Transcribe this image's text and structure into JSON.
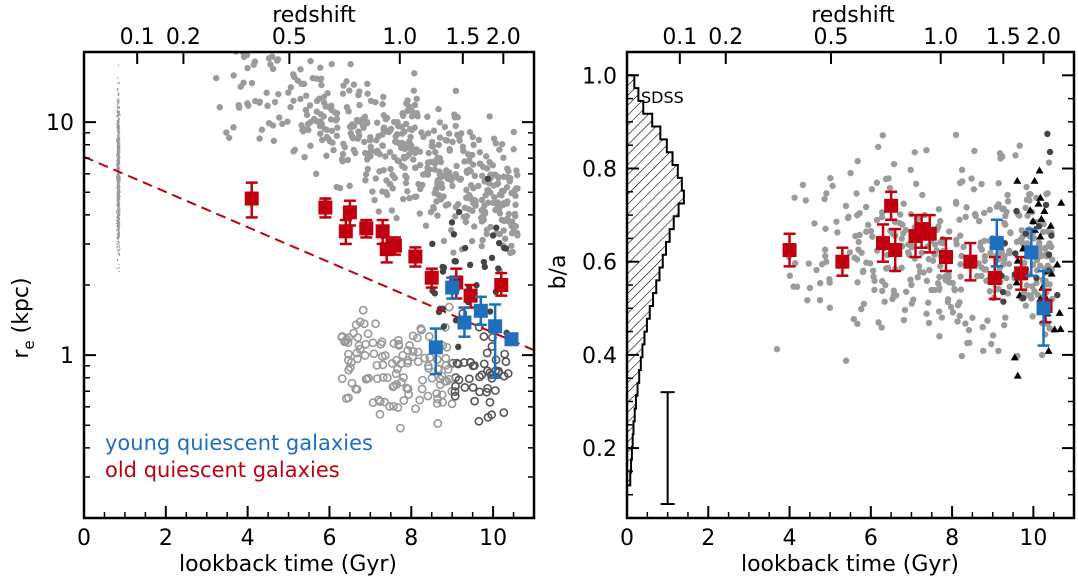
{
  "chart_data": [
    {
      "type": "scatter",
      "xlabel": "lookback time (Gyr)",
      "ylabel": "r_e (kpc)",
      "ylabel_main": "r",
      "ylabel_sub": "e",
      "ylabel_rest": " (kpc)",
      "top_axis_label": "redshift",
      "yscale": "log",
      "xlim": [
        0,
        11
      ],
      "ylim": [
        0.2,
        20
      ],
      "x_ticks": [
        0,
        2,
        4,
        6,
        8,
        10
      ],
      "x_tick_labels": [
        "0",
        "2",
        "4",
        "6",
        "8",
        "10"
      ],
      "y_ticks": [
        1,
        10
      ],
      "y_tick_labels": [
        "1",
        "10"
      ],
      "z_ticks": [
        {
          "z": 0.1,
          "t": 1.3,
          "label": "0.1"
        },
        {
          "z": 0.2,
          "t": 2.43,
          "label": "0.2"
        },
        {
          "z": 0.5,
          "t": 5.02,
          "label": "0.5"
        },
        {
          "z": 1.0,
          "t": 7.72,
          "label": "1.0"
        },
        {
          "z": 1.5,
          "t": 9.26,
          "label": "1.5"
        },
        {
          "z": 2.0,
          "t": 10.25,
          "label": "2.0"
        }
      ],
      "legend": [
        {
          "label": "young quiescent galaxies",
          "color": "#1f6fbf"
        },
        {
          "label": "old quiescent galaxies",
          "color": "#c0000f"
        }
      ],
      "trend_line": {
        "t0": 0,
        "r0": 7.1,
        "t1": 11,
        "r1": 1.05,
        "color": "#c0000f",
        "style": "dashed"
      },
      "series": [
        {
          "name": "old quiescent galaxies",
          "color": "#c0000f",
          "points": [
            {
              "x": 4.1,
              "y": 4.7,
              "lo": 3.9,
              "hi": 5.5
            },
            {
              "x": 5.9,
              "y": 4.3,
              "lo": 3.9,
              "hi": 4.7
            },
            {
              "x": 6.4,
              "y": 3.4,
              "lo": 3.0,
              "hi": 3.8
            },
            {
              "x": 6.5,
              "y": 4.1,
              "lo": 3.6,
              "hi": 4.6
            },
            {
              "x": 6.9,
              "y": 3.5,
              "lo": 3.2,
              "hi": 3.8
            },
            {
              "x": 7.3,
              "y": 3.4,
              "lo": 3.0,
              "hi": 3.8
            },
            {
              "x": 7.4,
              "y": 2.85,
              "lo": 2.5,
              "hi": 3.2
            },
            {
              "x": 7.6,
              "y": 2.95,
              "lo": 2.7,
              "hi": 3.2
            },
            {
              "x": 8.1,
              "y": 2.65,
              "lo": 2.4,
              "hi": 2.9
            },
            {
              "x": 8.5,
              "y": 2.15,
              "lo": 1.95,
              "hi": 2.35
            },
            {
              "x": 9.1,
              "y": 2.05,
              "lo": 1.75,
              "hi": 2.35
            },
            {
              "x": 9.45,
              "y": 1.8,
              "lo": 1.6,
              "hi": 2.0
            },
            {
              "x": 10.2,
              "y": 2.0,
              "lo": 1.8,
              "hi": 2.25
            }
          ]
        },
        {
          "name": "young quiescent galaxies",
          "color": "#1f6fbf",
          "points": [
            {
              "x": 8.6,
              "y": 1.08,
              "lo": 0.83,
              "hi": 1.3
            },
            {
              "x": 9.0,
              "y": 1.95,
              "lo": 1.75,
              "hi": 2.15
            },
            {
              "x": 9.3,
              "y": 1.38,
              "lo": 1.2,
              "hi": 1.6
            },
            {
              "x": 9.7,
              "y": 1.55,
              "lo": 1.35,
              "hi": 1.78
            },
            {
              "x": 10.05,
              "y": 1.33,
              "lo": 0.8,
              "hi": 1.65
            },
            {
              "x": 10.45,
              "y": 1.17
            }
          ]
        }
      ]
    },
    {
      "type": "scatter",
      "xlabel": "lookback time (Gyr)",
      "ylabel": "b/a",
      "top_axis_label": "redshift",
      "xlim": [
        0,
        11
      ],
      "ylim": [
        0.05,
        1.05
      ],
      "x_ticks": [
        0,
        2,
        4,
        6,
        8,
        10
      ],
      "x_tick_labels": [
        "0",
        "2",
        "4",
        "6",
        "8",
        "10"
      ],
      "y_ticks": [
        0.2,
        0.4,
        0.6,
        0.8,
        1.0
      ],
      "y_tick_labels": [
        "0.2",
        "0.4",
        "0.6",
        "0.8",
        "1.0"
      ],
      "z_ticks": [
        {
          "z": 0.1,
          "t": 1.3,
          "label": "0.1"
        },
        {
          "z": 0.2,
          "t": 2.43,
          "label": "0.2"
        },
        {
          "z": 0.5,
          "t": 5.02,
          "label": "0.5"
        },
        {
          "z": 1.0,
          "t": 7.72,
          "label": "1.0"
        },
        {
          "z": 1.5,
          "t": 9.26,
          "label": "1.5"
        },
        {
          "z": 2.0,
          "t": 10.25,
          "label": "2.0"
        }
      ],
      "histogram_label": "SDSS",
      "typical_error_bar": {
        "x": 1.0,
        "lo": 0.08,
        "hi": 0.32
      },
      "series": [
        {
          "name": "old quiescent galaxies",
          "color": "#c0000f",
          "points": [
            {
              "x": 4.0,
              "y": 0.625,
              "lo": 0.59,
              "hi": 0.66
            },
            {
              "x": 5.3,
              "y": 0.6,
              "lo": 0.57,
              "hi": 0.63
            },
            {
              "x": 6.3,
              "y": 0.64,
              "lo": 0.6,
              "hi": 0.68
            },
            {
              "x": 6.5,
              "y": 0.72,
              "lo": 0.69,
              "hi": 0.75
            },
            {
              "x": 6.6,
              "y": 0.625,
              "lo": 0.58,
              "hi": 0.67
            },
            {
              "x": 7.1,
              "y": 0.655,
              "lo": 0.61,
              "hi": 0.7
            },
            {
              "x": 7.25,
              "y": 0.67,
              "lo": 0.63,
              "hi": 0.7
            },
            {
              "x": 7.45,
              "y": 0.66,
              "lo": 0.62,
              "hi": 0.7
            },
            {
              "x": 7.85,
              "y": 0.61,
              "lo": 0.58,
              "hi": 0.65
            },
            {
              "x": 8.45,
              "y": 0.6,
              "lo": 0.56,
              "hi": 0.64
            },
            {
              "x": 9.05,
              "y": 0.565,
              "lo": 0.52,
              "hi": 0.61
            },
            {
              "x": 9.7,
              "y": 0.575,
              "lo": 0.54,
              "hi": 0.61
            },
            {
              "x": 10.3,
              "y": 0.505,
              "lo": 0.47,
              "hi": 0.54
            }
          ]
        },
        {
          "name": "young quiescent galaxies",
          "color": "#1f6fbf",
          "points": [
            {
              "x": 9.1,
              "y": 0.64,
              "lo": 0.59,
              "hi": 0.69
            },
            {
              "x": 9.95,
              "y": 0.62,
              "lo": 0.57,
              "hi": 0.67
            },
            {
              "x": 10.25,
              "y": 0.5,
              "lo": 0.42,
              "hi": 0.58
            }
          ]
        }
      ]
    }
  ]
}
